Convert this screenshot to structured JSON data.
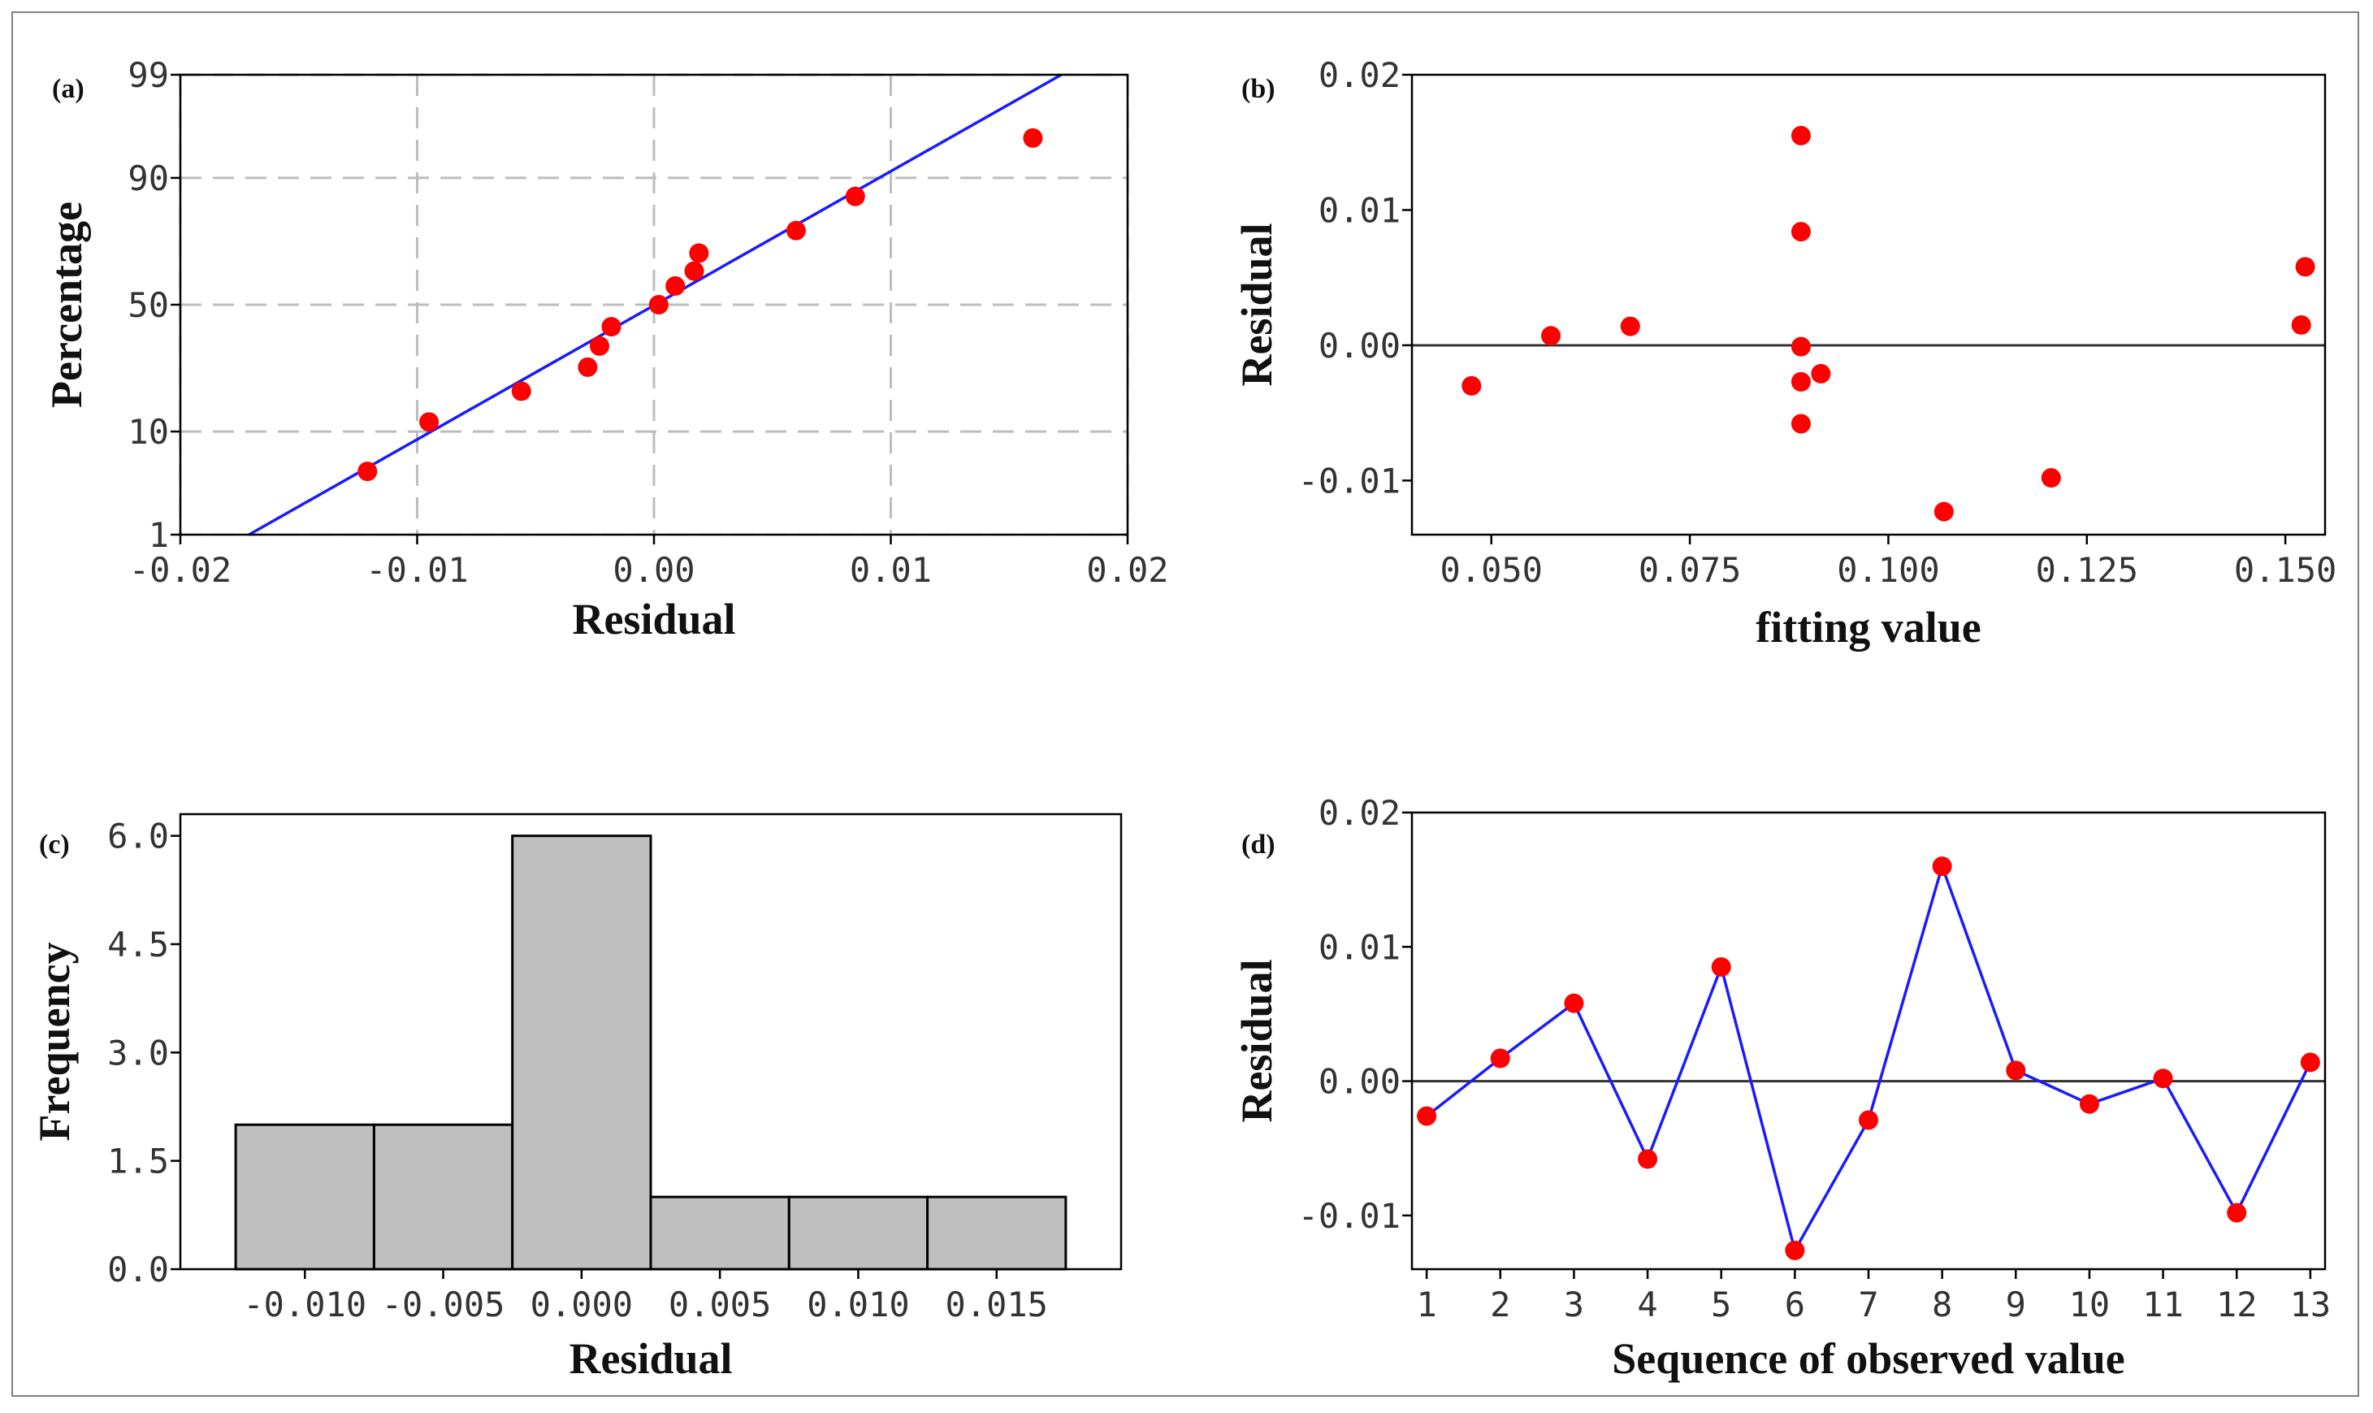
{
  "chart_data": [
    {
      "id": "a",
      "panel_label": "(a)",
      "type": "scatter",
      "title": "",
      "xlabel": "Residual",
      "ylabel": "Percentage",
      "xlim": [
        -0.02,
        0.02
      ],
      "ylim": [
        1,
        99
      ],
      "xticks": [
        -0.02,
        -0.01,
        0.0,
        0.01,
        0.02
      ],
      "xtick_labels": [
        "-0.02",
        "-0.01",
        "0.00",
        "0.01",
        "0.02"
      ],
      "yticks": [
        1,
        10,
        50,
        90,
        99
      ],
      "ytick_labels": [
        "1",
        "10",
        "50",
        "90",
        "99"
      ],
      "grid": true,
      "points": [
        {
          "x": -0.0121,
          "y": 4.6
        },
        {
          "x": -0.0095,
          "y": 11.8
        },
        {
          "x": -0.0056,
          "y": 19.1
        },
        {
          "x": -0.0028,
          "y": 26.4
        },
        {
          "x": -0.0023,
          "y": 33.8
        },
        {
          "x": -0.0018,
          "y": 41.2
        },
        {
          "x": 0.0002,
          "y": 50.0
        },
        {
          "x": 0.0009,
          "y": 57.5
        },
        {
          "x": 0.0017,
          "y": 63.3
        },
        {
          "x": 0.0019,
          "y": 69.9
        },
        {
          "x": 0.006,
          "y": 77.3
        },
        {
          "x": 0.0085,
          "y": 86.3
        },
        {
          "x": 0.016,
          "y": 95.4
        }
      ],
      "fit_line": {
        "x": [
          -0.0171,
          0.0172
        ],
        "y": [
          1,
          99
        ]
      }
    },
    {
      "id": "b",
      "panel_label": "(b)",
      "type": "scatter",
      "title": "",
      "xlabel": "fitting value",
      "ylabel": "Residual",
      "xlim": [
        0.04,
        0.155
      ],
      "ylim": [
        -0.014,
        0.02
      ],
      "xticks": [
        0.05,
        0.075,
        0.1,
        0.125,
        0.15
      ],
      "xtick_labels": [
        "0.050",
        "0.075",
        "0.100",
        "0.125",
        "0.150"
      ],
      "yticks": [
        -0.01,
        0.0,
        0.01,
        0.02
      ],
      "ytick_labels": [
        "-0.01",
        "0.00",
        "0.01",
        "0.02"
      ],
      "reference_line": 0,
      "points": [
        {
          "x": 0.0475,
          "y": -0.003
        },
        {
          "x": 0.0575,
          "y": 0.0007
        },
        {
          "x": 0.0675,
          "y": 0.0014
        },
        {
          "x": 0.089,
          "y": 0.0155
        },
        {
          "x": 0.089,
          "y": 0.0084
        },
        {
          "x": 0.089,
          "y": -0.0001
        },
        {
          "x": 0.089,
          "y": -0.0027
        },
        {
          "x": 0.089,
          "y": -0.0058
        },
        {
          "x": 0.0915,
          "y": -0.0021
        },
        {
          "x": 0.107,
          "y": -0.0123
        },
        {
          "x": 0.1205,
          "y": -0.0098
        },
        {
          "x": 0.152,
          "y": 0.0015
        },
        {
          "x": 0.1525,
          "y": 0.0058
        }
      ]
    },
    {
      "id": "c",
      "panel_label": "(c)",
      "type": "bar",
      "title": "",
      "xlabel": "Residual",
      "ylabel": "Frequency",
      "xlim": [
        -0.0145,
        0.0195
      ],
      "ylim": [
        0,
        6.3
      ],
      "xticks": [
        -0.01,
        -0.005,
        0.0,
        0.005,
        0.01,
        0.015
      ],
      "xtick_labels": [
        "-0.010",
        "-0.005",
        "0.000",
        "0.005",
        "0.010",
        "0.015"
      ],
      "yticks": [
        0,
        1.5,
        3.0,
        4.5,
        6.0
      ],
      "ytick_labels": [
        "0.0",
        "1.5",
        "3.0",
        "4.5",
        "6.0"
      ],
      "bin_centers": [
        -0.01,
        -0.005,
        0.0,
        0.005,
        0.01,
        0.015
      ],
      "bin_width": 0.005,
      "values": [
        2,
        2,
        6,
        1,
        1,
        1
      ]
    },
    {
      "id": "d",
      "panel_label": "(d)",
      "type": "line",
      "title": "",
      "xlabel": "Sequence of observed value",
      "ylabel": "Residual",
      "xlim": [
        0.8,
        13.2
      ],
      "ylim": [
        -0.014,
        0.02
      ],
      "xticks": [
        1,
        2,
        3,
        4,
        5,
        6,
        7,
        8,
        9,
        10,
        11,
        12,
        13
      ],
      "xtick_labels": [
        "1",
        "2",
        "3",
        "4",
        "5",
        "6",
        "7",
        "8",
        "9",
        "10",
        "11",
        "12",
        "13"
      ],
      "yticks": [
        -0.01,
        0.0,
        0.01,
        0.02
      ],
      "ytick_labels": [
        "-0.01",
        "0.00",
        "0.01",
        "0.02"
      ],
      "reference_line": 0,
      "x": [
        1,
        2,
        3,
        4,
        5,
        6,
        7,
        8,
        9,
        10,
        11,
        12,
        13
      ],
      "y": [
        -0.0026,
        0.0017,
        0.0058,
        -0.0058,
        0.0085,
        -0.0126,
        -0.0029,
        0.016,
        0.0008,
        -0.0017,
        0.0002,
        -0.0098,
        0.0014
      ]
    }
  ],
  "colors": {
    "points": "#ff0000",
    "line": "#1a1aff",
    "bar_fill": "#bfbfbf",
    "grid": "#bdbdbd"
  }
}
